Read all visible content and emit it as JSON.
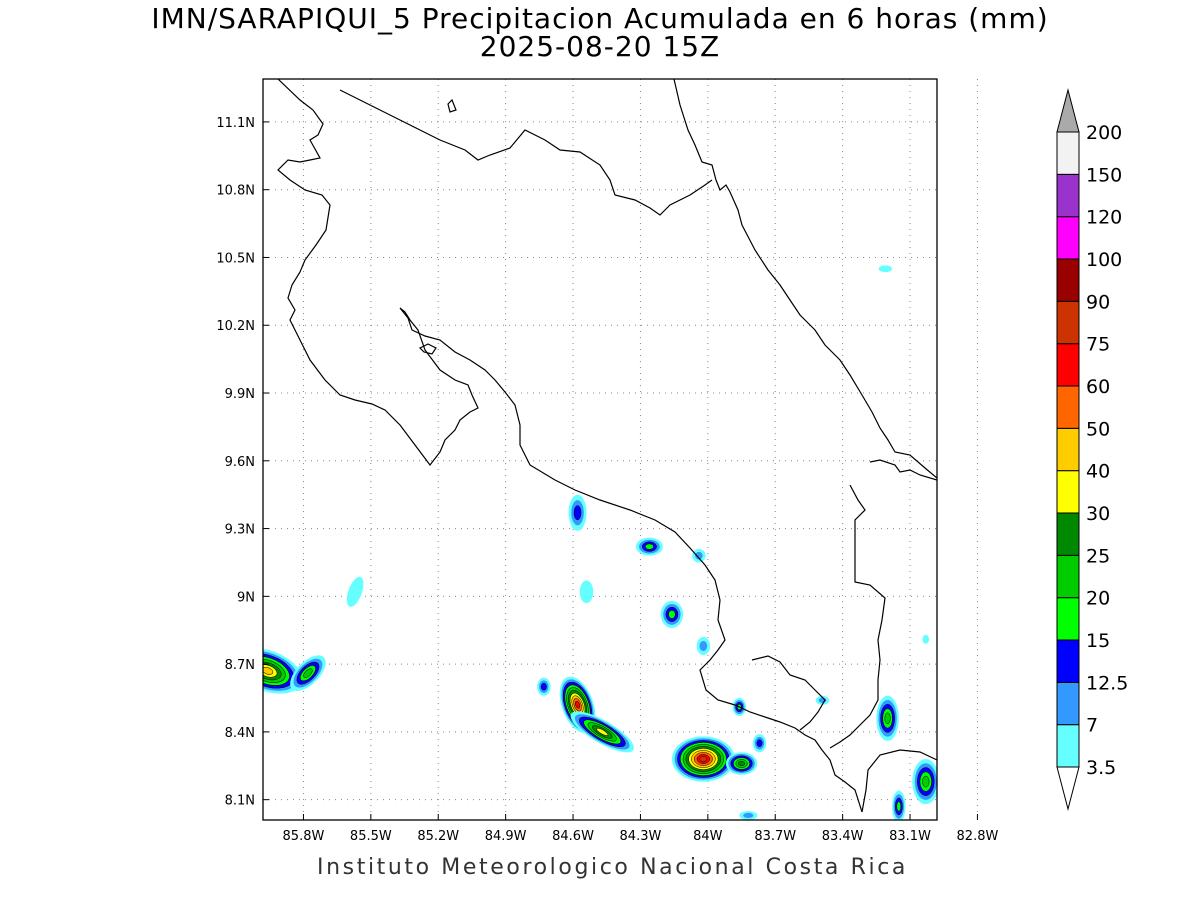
{
  "title": {
    "line1": "IMN/SARAPIQUI_5 Precipitacion Acumulada en 6 horas (mm)",
    "line2": "2025-08-20 15Z"
  },
  "footer": "Instituto Meteorologico Nacional Costa Rica",
  "map": {
    "lon_range": [
      -85.98,
      -82.98
    ],
    "lat_range": [
      8.01,
      11.29
    ],
    "lon_ticks": [
      {
        "value": -85.8,
        "label": "85.8W"
      },
      {
        "value": -85.5,
        "label": "85.5W"
      },
      {
        "value": -85.2,
        "label": "85.2W"
      },
      {
        "value": -84.9,
        "label": "84.9W"
      },
      {
        "value": -84.6,
        "label": "84.6W"
      },
      {
        "value": -84.3,
        "label": "84.3W"
      },
      {
        "value": -84.0,
        "label": "84W"
      },
      {
        "value": -83.7,
        "label": "83.7W"
      },
      {
        "value": -83.4,
        "label": "83.4W"
      },
      {
        "value": -83.1,
        "label": "83.1W"
      },
      {
        "value": -82.8,
        "label": "82.8W"
      }
    ],
    "lat_ticks": [
      {
        "value": 8.1,
        "label": "8.1N"
      },
      {
        "value": 8.4,
        "label": "8.4N"
      },
      {
        "value": 8.7,
        "label": "8.7N"
      },
      {
        "value": 9.0,
        "label": "9N"
      },
      {
        "value": 9.3,
        "label": "9.3N"
      },
      {
        "value": 9.6,
        "label": "9.6N"
      },
      {
        "value": 9.9,
        "label": "9.9N"
      },
      {
        "value": 10.2,
        "label": "10.2N"
      },
      {
        "value": 10.5,
        "label": "10.5N"
      },
      {
        "value": 10.8,
        "label": "10.8N"
      },
      {
        "value": 11.1,
        "label": "11.1N"
      }
    ],
    "grid": "dotted"
  },
  "colorbar": {
    "levels": [
      {
        "label": "3.5",
        "color": "#66ffff"
      },
      {
        "label": "7",
        "color": "#3399ff"
      },
      {
        "label": "12.5",
        "color": "#0000ff"
      },
      {
        "label": "15",
        "color": "#00ff00"
      },
      {
        "label": "20",
        "color": "#00cc00"
      },
      {
        "label": "25",
        "color": "#008800"
      },
      {
        "label": "30",
        "color": "#ffff00"
      },
      {
        "label": "40",
        "color": "#ffcc00"
      },
      {
        "label": "50",
        "color": "#ff6600"
      },
      {
        "label": "60",
        "color": "#ff0000"
      },
      {
        "label": "75",
        "color": "#cc3300"
      },
      {
        "label": "90",
        "color": "#990000"
      },
      {
        "label": "100",
        "color": "#ff00ff"
      },
      {
        "label": "120",
        "color": "#9933cc"
      },
      {
        "label": "150",
        "color": "#f2f2f2"
      },
      {
        "label": "200",
        "color": "#aaaaaa"
      }
    ],
    "below_color": "#ffffff",
    "above_color": "#aaaaaa"
  },
  "precip_cells": [
    {
      "lon": -85.96,
      "lat": 8.67,
      "rx": 0.16,
      "ry": 0.09,
      "angle": 20,
      "peak": 8
    },
    {
      "lon": -85.78,
      "lat": 8.66,
      "rx": 0.1,
      "ry": 0.05,
      "angle": -45,
      "peak": 5
    },
    {
      "lon": -85.57,
      "lat": 9.02,
      "rx": 0.03,
      "ry": 0.07,
      "angle": 20,
      "peak": 1
    },
    {
      "lon": -84.58,
      "lat": 9.37,
      "rx": 0.04,
      "ry": 0.08,
      "angle": 0,
      "peak": 3
    },
    {
      "lon": -84.26,
      "lat": 9.22,
      "rx": 0.06,
      "ry": 0.04,
      "angle": 0,
      "peak": 4
    },
    {
      "lon": -84.04,
      "lat": 9.18,
      "rx": 0.03,
      "ry": 0.03,
      "angle": 0,
      "peak": 2
    },
    {
      "lon": -84.16,
      "lat": 8.92,
      "rx": 0.05,
      "ry": 0.06,
      "angle": 0,
      "peak": 4
    },
    {
      "lon": -84.02,
      "lat": 8.78,
      "rx": 0.03,
      "ry": 0.04,
      "angle": 0,
      "peak": 2
    },
    {
      "lon": -84.54,
      "lat": 9.02,
      "rx": 0.03,
      "ry": 0.05,
      "angle": 0,
      "peak": 1
    },
    {
      "lon": -84.58,
      "lat": 8.52,
      "rx": 0.07,
      "ry": 0.13,
      "angle": -20,
      "peak": 10
    },
    {
      "lon": -84.47,
      "lat": 8.4,
      "rx": 0.16,
      "ry": 0.05,
      "angle": 30,
      "peak": 7
    },
    {
      "lon": -84.02,
      "lat": 8.28,
      "rx": 0.14,
      "ry": 0.1,
      "angle": 0,
      "peak": 11
    },
    {
      "lon": -83.85,
      "lat": 8.26,
      "rx": 0.07,
      "ry": 0.05,
      "angle": 0,
      "peak": 6
    },
    {
      "lon": -83.86,
      "lat": 8.51,
      "rx": 0.03,
      "ry": 0.04,
      "angle": 0,
      "peak": 4
    },
    {
      "lon": -83.77,
      "lat": 8.35,
      "rx": 0.03,
      "ry": 0.04,
      "angle": 0,
      "peak": 3
    },
    {
      "lon": -83.49,
      "lat": 8.54,
      "rx": 0.03,
      "ry": 0.02,
      "angle": 0,
      "peak": 2
    },
    {
      "lon": -83.2,
      "lat": 8.46,
      "rx": 0.05,
      "ry": 0.1,
      "angle": 0,
      "peak": 5
    },
    {
      "lon": -83.15,
      "lat": 8.07,
      "rx": 0.03,
      "ry": 0.07,
      "angle": 0,
      "peak": 4
    },
    {
      "lon": -83.03,
      "lat": 8.18,
      "rx": 0.06,
      "ry": 0.1,
      "angle": 0,
      "peak": 5
    },
    {
      "lon": -83.82,
      "lat": 8.03,
      "rx": 0.04,
      "ry": 0.02,
      "angle": 0,
      "peak": 2
    },
    {
      "lon": -83.21,
      "lat": 10.45,
      "rx": 0.03,
      "ry": 0.015,
      "angle": 0,
      "peak": 1
    },
    {
      "lon": -84.73,
      "lat": 8.6,
      "rx": 0.03,
      "ry": 0.04,
      "angle": 0,
      "peak": 3
    },
    {
      "lon": -83.03,
      "lat": 8.81,
      "rx": 0.015,
      "ry": 0.02,
      "angle": 0,
      "peak": 1
    }
  ]
}
